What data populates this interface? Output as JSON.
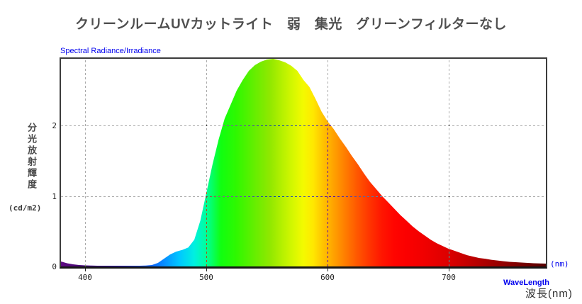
{
  "title": "クリーンルームUVカットライト　弱　集光　グリーンフィルターなし",
  "chart": {
    "header_label": "Spectral Radiance/Irradiance",
    "y_axis": {
      "label": "分光放射輝度",
      "unit": "(cd/m2)",
      "ticks": [
        "0",
        "1",
        "2"
      ],
      "tick_values": [
        0,
        1,
        2
      ],
      "grid_values": [
        1,
        2
      ]
    },
    "x_axis": {
      "ticks": [
        "400",
        "500",
        "600",
        "700"
      ],
      "tick_values": [
        400,
        500,
        600,
        700
      ],
      "unit": "(nm)",
      "label_en": "WaveLength",
      "label_ja": "波長(nm)"
    },
    "colors": {
      "accent_blue": "#0000ee",
      "frame": "#3c3c3c",
      "grid": "#aaaaaa",
      "title_gray": "#4f4f4f"
    }
  },
  "chart_data": {
    "type": "area",
    "title": "クリーンルームUVカットライト　弱　集光　グリーンフィルターなし",
    "xlabel": "波長(nm)",
    "ylabel": "分光放射輝度 (cd/m2)",
    "xlim": [
      380,
      780
    ],
    "ylim": [
      0,
      2.95
    ],
    "grid": true,
    "x": [
      380,
      385,
      390,
      395,
      400,
      405,
      410,
      415,
      420,
      425,
      430,
      435,
      440,
      445,
      450,
      455,
      460,
      465,
      470,
      475,
      480,
      485,
      490,
      495,
      500,
      505,
      510,
      515,
      520,
      525,
      530,
      535,
      540,
      545,
      550,
      555,
      560,
      565,
      570,
      575,
      580,
      585,
      590,
      595,
      600,
      605,
      610,
      615,
      620,
      625,
      630,
      635,
      640,
      645,
      650,
      655,
      660,
      665,
      670,
      675,
      680,
      685,
      690,
      695,
      700,
      705,
      710,
      715,
      720,
      725,
      730,
      735,
      740,
      745,
      750,
      755,
      760,
      765,
      770,
      775,
      780
    ],
    "values": [
      0.07,
      0.045,
      0.03,
      0.02,
      0.015,
      0.012,
      0.01,
      0.01,
      0.01,
      0.01,
      0.01,
      0.01,
      0.01,
      0.01,
      0.012,
      0.02,
      0.05,
      0.11,
      0.17,
      0.21,
      0.235,
      0.27,
      0.38,
      0.65,
      1.05,
      1.45,
      1.8,
      2.1,
      2.3,
      2.5,
      2.65,
      2.78,
      2.86,
      2.91,
      2.94,
      2.95,
      2.93,
      2.9,
      2.85,
      2.78,
      2.65,
      2.55,
      2.38,
      2.2,
      2.06,
      1.95,
      1.82,
      1.7,
      1.57,
      1.45,
      1.32,
      1.2,
      1.1,
      1.0,
      0.91,
      0.82,
      0.73,
      0.65,
      0.57,
      0.5,
      0.44,
      0.38,
      0.33,
      0.29,
      0.25,
      0.22,
      0.19,
      0.16,
      0.14,
      0.12,
      0.11,
      0.095,
      0.085,
      0.075,
      0.065,
      0.06,
      0.055,
      0.05,
      0.045,
      0.042,
      0.04
    ],
    "gradient_stops": [
      {
        "wl": 380,
        "color": "#5e0b82"
      },
      {
        "wl": 395,
        "color": "#4a0878"
      },
      {
        "wl": 410,
        "color": "#3a0890"
      },
      {
        "wl": 430,
        "color": "#2a14c8"
      },
      {
        "wl": 450,
        "color": "#0a50f0"
      },
      {
        "wl": 462,
        "color": "#0a80ff"
      },
      {
        "wl": 478,
        "color": "#00c8ff"
      },
      {
        "wl": 490,
        "color": "#00f0e0"
      },
      {
        "wl": 500,
        "color": "#00ff9a"
      },
      {
        "wl": 512,
        "color": "#10ff10"
      },
      {
        "wl": 525,
        "color": "#30f800"
      },
      {
        "wl": 540,
        "color": "#66ee00"
      },
      {
        "wl": 552,
        "color": "#8fe800"
      },
      {
        "wl": 562,
        "color": "#b4f000"
      },
      {
        "wl": 572,
        "color": "#d8f800"
      },
      {
        "wl": 580,
        "color": "#f4fa00"
      },
      {
        "wl": 588,
        "color": "#ffe800"
      },
      {
        "wl": 596,
        "color": "#ffc400"
      },
      {
        "wl": 605,
        "color": "#ffa200"
      },
      {
        "wl": 615,
        "color": "#ff7b00"
      },
      {
        "wl": 625,
        "color": "#ff5500"
      },
      {
        "wl": 635,
        "color": "#ff3300"
      },
      {
        "wl": 645,
        "color": "#ff1500"
      },
      {
        "wl": 655,
        "color": "#ff0400"
      },
      {
        "wl": 665,
        "color": "#fb0000"
      },
      {
        "wl": 680,
        "color": "#f00000"
      },
      {
        "wl": 700,
        "color": "#dc0000"
      },
      {
        "wl": 715,
        "color": "#c40000"
      },
      {
        "wl": 730,
        "color": "#ab0000"
      },
      {
        "wl": 745,
        "color": "#920000"
      },
      {
        "wl": 760,
        "color": "#780000"
      },
      {
        "wl": 770,
        "color": "#680000"
      },
      {
        "wl": 780,
        "color": "#560000"
      }
    ]
  }
}
